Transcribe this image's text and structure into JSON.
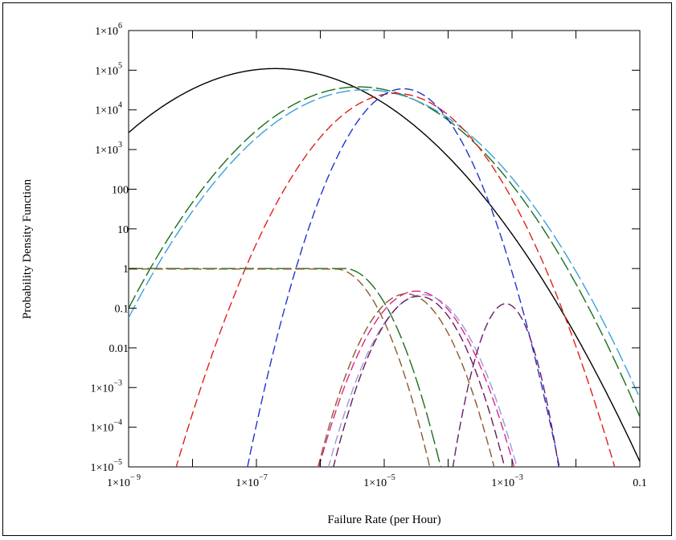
{
  "chart_data": {
    "type": "line",
    "title": "",
    "xlabel": "Failure Rate (per Hour)",
    "ylabel": "Probability Density Function",
    "xscale": "log",
    "yscale": "log",
    "xlim": [
      1e-09,
      0.1
    ],
    "ylim": [
      1e-05,
      1000000.0
    ],
    "grid": false,
    "legend": "none",
    "x_ticks": [
      {
        "value": 1e-09,
        "base": "1×10",
        "exp": "− 9"
      },
      {
        "value": 1e-07,
        "base": "1×10",
        "exp": "−7"
      },
      {
        "value": 1e-05,
        "base": "1×10",
        "exp": "−5"
      },
      {
        "value": 0.001,
        "base": "1×10",
        "exp": "−3"
      },
      {
        "value": 0.1,
        "base": "0.1",
        "exp": ""
      }
    ],
    "y_ticks": [
      {
        "value": 1000000.0,
        "base": "1×10",
        "exp": "6"
      },
      {
        "value": 100000.0,
        "base": "1×10",
        "exp": "5"
      },
      {
        "value": 10000.0,
        "base": "1×10",
        "exp": "4"
      },
      {
        "value": 1000.0,
        "base": "1×10",
        "exp": "3"
      },
      {
        "value": 100,
        "base": "100",
        "exp": ""
      },
      {
        "value": 10,
        "base": "10",
        "exp": ""
      },
      {
        "value": 1,
        "base": "1",
        "exp": ""
      },
      {
        "value": 0.1,
        "base": "0.1",
        "exp": ""
      },
      {
        "value": 0.01,
        "base": "0.01",
        "exp": ""
      },
      {
        "value": 0.001,
        "base": "1×10",
        "exp": "−3"
      },
      {
        "value": 0.0001,
        "base": "1×10",
        "exp": "−4"
      },
      {
        "value": 1e-05,
        "base": "1×10",
        "exp": "−5"
      }
    ],
    "series": [
      {
        "color": "#000000",
        "dash": "solid",
        "peak_x": 2e-07,
        "peak_y": 110000,
        "k": 0.305
      },
      {
        "color": "#1a6e1a",
        "dash": "long",
        "peak_x": 4e-06,
        "peak_y": 38000,
        "k": 0.43
      },
      {
        "color": "#3aa0d8",
        "dash": "long",
        "peak_x": 5e-06,
        "peak_y": 32000,
        "k": 0.42
      },
      {
        "color": "#e0201a",
        "dash": "medium",
        "peak_x": 1.5e-05,
        "peak_y": 26000,
        "k": 0.8
      },
      {
        "color": "#2233cc",
        "dash": "medium",
        "peak_x": 2e-05,
        "peak_y": 34000,
        "k": 1.6
      },
      {
        "color": "#1a6e1a",
        "dash": "long",
        "peak_x": 1e-09,
        "peak_y": 1.0,
        "cutoff_x": 7.5e-05,
        "k": 2.2
      },
      {
        "color": "#8b5a2b",
        "dash": "medium",
        "peak_x": 1e-09,
        "peak_y": 0.97,
        "cutoff_x": 5.5e-05,
        "k": 2.3
      },
      {
        "color": "#e0208c",
        "dash": "medium",
        "peak_x": 3.2e-05,
        "peak_y": 0.27,
        "k": 1.9
      },
      {
        "color": "#8b5a2b",
        "dash": "medium",
        "peak_x": 2.2e-05,
        "peak_y": 0.23,
        "k": 2.3
      },
      {
        "color": "#9999dd",
        "dash": "medium",
        "peak_x": 4e-05,
        "peak_y": 0.22,
        "k": 2.0
      },
      {
        "color": "#6a1a5a",
        "dash": "medium",
        "peak_x": 3.5e-05,
        "peak_y": 0.2,
        "k": 2.4
      },
      {
        "color": "#6a1a6e",
        "dash": "medium",
        "peak_x": 0.0008,
        "peak_y": 0.13,
        "k": 6.0
      }
    ]
  }
}
